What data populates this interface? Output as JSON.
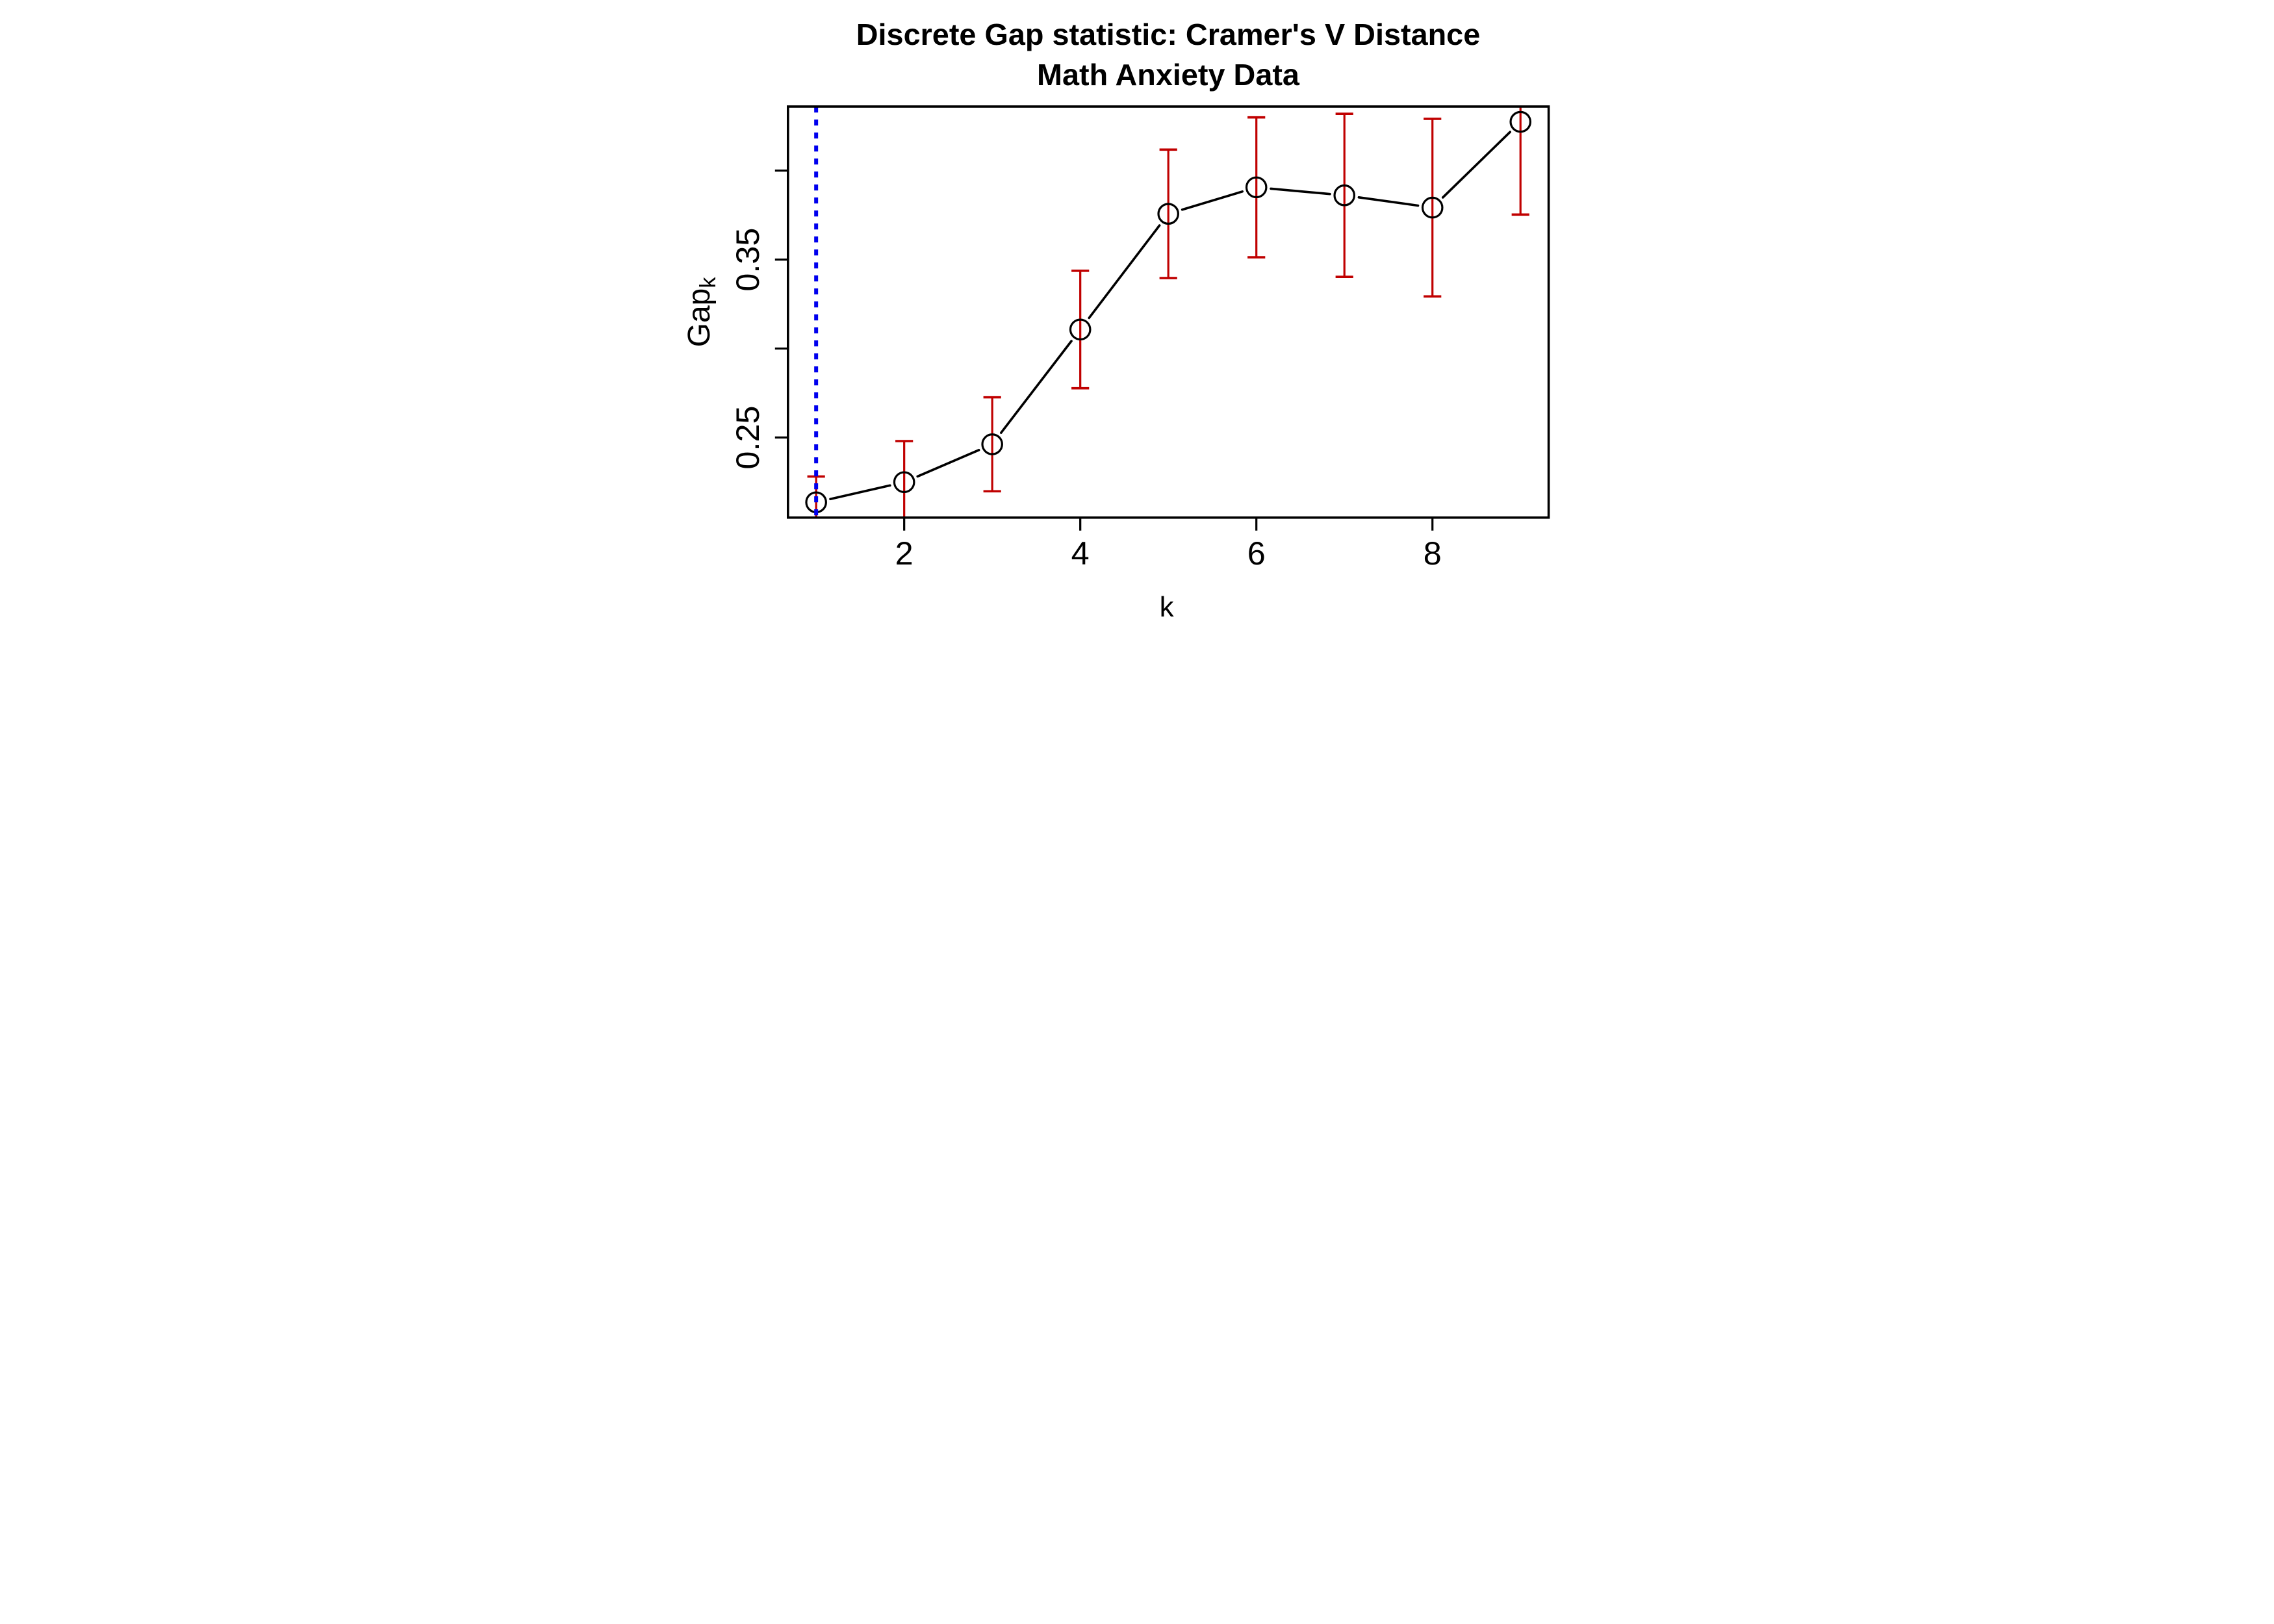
{
  "title": {
    "line1": "Discrete Gap statistic: Cramer's V Distance",
    "line2": "Math Anxiety Data"
  },
  "axes": {
    "x_label": "k",
    "y_label_base": "Gap",
    "y_label_subscript": "k",
    "x_tick_labels": [
      "2",
      "4",
      "6",
      "8"
    ],
    "x_tick_values": [
      2,
      4,
      6,
      8
    ],
    "y_tick_values": [
      0.25,
      0.3,
      0.35,
      0.4
    ],
    "y_tick_labeled": [
      0.25,
      0.35
    ],
    "y_tick_label_texts": [
      "0.25",
      "0.35"
    ]
  },
  "colors": {
    "error_bar": "#c00000",
    "reference_line": "#0000ee",
    "series": "#000000",
    "frame": "#000000"
  },
  "chart_data": {
    "type": "line",
    "title": "Discrete Gap statistic: Cramer's V Distance — Math Anxiety Data",
    "xlabel": "k",
    "ylabel": "Gap_k",
    "x": [
      1,
      2,
      3,
      4,
      5,
      6,
      7,
      8,
      9
    ],
    "gap": [
      0.2136,
      0.2249,
      0.2462,
      0.3107,
      0.3757,
      0.3906,
      0.3861,
      0.3792,
      0.4274
    ],
    "error_upper": [
      0.2281,
      0.248,
      0.2726,
      0.3437,
      0.4118,
      0.4299,
      0.4319,
      0.4291,
      0.4795
    ],
    "error_lower": [
      0.1991,
      0.2018,
      0.2198,
      0.2777,
      0.3396,
      0.3513,
      0.3403,
      0.3293,
      0.3753
    ],
    "reference_vline_x": 1,
    "xlim": [
      0.68,
      9.32
    ],
    "ylim": [
      0.205,
      0.436
    ],
    "grid": false,
    "legend": "none",
    "marker": "open-circle",
    "error_bar_style": "red whiskers with caps, clipped at plot box",
    "reference_line_style": "blue dotted vertical at k = 1"
  }
}
